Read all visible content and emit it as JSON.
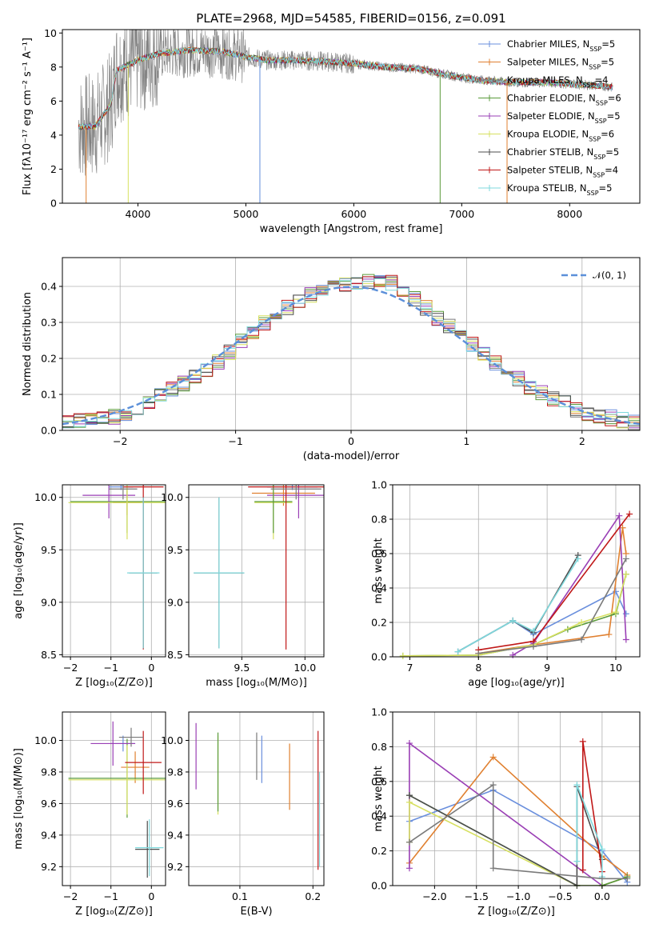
{
  "colors": {
    "Chabrier MILES": "#6a8fdd",
    "Salpeter MILES": "#e08030",
    "Kroupa MILES": "#7a7a7a",
    "Chabrier ELODIE": "#5a9a3a",
    "Salpeter ELODIE": "#9a3fb5",
    "Kroupa ELODIE": "#d6e060",
    "Chabrier STELIB": "#4d4d4d",
    "Salpeter STELIB": "#c01818",
    "Kroupa STELIB": "#7fd9dd",
    "normal_curve": "#5b8fd9",
    "grid": "#b0b0b0"
  },
  "chart_data": [
    {
      "type": "line",
      "title": "PLATE=2968, MJD=54585, FIBERID=0156, z=0.091",
      "xlabel": "wavelength [Angstrom, rest frame]",
      "ylabel": "Flux [fλ10⁻¹⁷ erg cm⁻² s⁻¹ A⁻¹]",
      "xlim": [
        3300,
        8650
      ],
      "ylim": [
        0,
        10.2
      ],
      "xticks": [
        "4000",
        "5000",
        "6000",
        "7000",
        "8000"
      ],
      "yticks": [
        "0",
        "2",
        "4",
        "6",
        "8",
        "10"
      ],
      "grid": false,
      "legend_position": "top-right",
      "legend": [
        "Chabrier MILES, N_SSP=5",
        "Salpeter MILES, N_SSP=5",
        "Kroupa MILES, N_SSP=4",
        "Chabrier ELODIE, N_SSP=6",
        "Salpeter ELODIE, N_SSP=5",
        "Kroupa ELODIE, N_SSP=6",
        "Chabrier STELIB, N_SSP=5",
        "Salpeter STELIB, N_SSP=4",
        "Kroupa STELIB, N_SSP=5"
      ],
      "data_envelope": {
        "x": [
          3450,
          3600,
          3750,
          3800,
          4000,
          4200,
          4500,
          4800,
          5000,
          5200,
          5500,
          5800,
          6000,
          6300,
          6600,
          6900,
          7200,
          7500,
          7800,
          8000,
          8300,
          8400
        ],
        "y": [
          4.5,
          4.5,
          5.8,
          7.8,
          8.4,
          8.8,
          9.0,
          8.9,
          8.6,
          8.4,
          8.4,
          8.3,
          8.2,
          8.0,
          7.9,
          7.5,
          7.2,
          7.1,
          7.1,
          7.0,
          6.9,
          6.8
        ]
      }
    },
    {
      "type": "line",
      "xlabel": "(data-model)/error",
      "ylabel": "Normed distribution",
      "xlim": [
        -2.5,
        2.5
      ],
      "ylim": [
        0,
        0.48
      ],
      "xticks": [
        "−2",
        "−1",
        "0",
        "1",
        "2"
      ],
      "yticks": [
        "0.0",
        "0.1",
        "0.2",
        "0.3",
        "0.4"
      ],
      "grid": true,
      "legend": [
        "𝒩(0, 1)"
      ],
      "curve": "normal pdf mean 0 sd 1",
      "histogram_bin_width": 0.1,
      "histogram_envelope": {
        "x": [
          -2.5,
          -2.0,
          -1.5,
          -1.2,
          -1.0,
          -0.8,
          -0.5,
          -0.2,
          0.0,
          0.3,
          0.5,
          0.8,
          1.0,
          1.2,
          1.5,
          2.0,
          2.5
        ],
        "y": [
          0.02,
          0.04,
          0.12,
          0.18,
          0.23,
          0.29,
          0.35,
          0.4,
          0.41,
          0.42,
          0.38,
          0.3,
          0.25,
          0.2,
          0.13,
          0.05,
          0.02
        ]
      }
    },
    {
      "type": "scatter",
      "xlabel": "Z [log₁₀(Z/Z⊙)]",
      "ylabel": "age  [log₁₀(age/yr)]",
      "xlim": [
        -2.2,
        0.35
      ],
      "ylim": [
        8.48,
        10.12
      ],
      "xticks": [
        "−2",
        "−1",
        "0"
      ],
      "yticks": [
        "8.5",
        "9.0",
        "9.5",
        "10.0"
      ],
      "grid": true,
      "errorbars": [
        {
          "series": "Chabrier MILES",
          "x": -0.75,
          "xerr": 0.3,
          "y": 10.1,
          "yerr": 0.03
        },
        {
          "series": "Salpeter MILES",
          "x": -0.6,
          "xerr": 0.35,
          "y": 9.95,
          "yerr": 0.12
        },
        {
          "series": "Chabrier ELODIE",
          "x": -0.6,
          "xerr": 1.4,
          "y": 9.96,
          "yerr": 0.3
        },
        {
          "series": "Salpeter ELODIE",
          "x": -1.05,
          "xerr": 0.65,
          "y": 10.02,
          "yerr": 0.22
        },
        {
          "series": "Kroupa ELODIE",
          "x": -0.6,
          "xerr": 1.45,
          "y": 9.95,
          "yerr": 0.35
        },
        {
          "series": "Chabrier STELIB",
          "x": -0.2,
          "xerr": 0.35,
          "y": 9.28,
          "yerr": 0.72
        },
        {
          "series": "Salpeter STELIB",
          "x": -0.2,
          "xerr": 0.5,
          "y": 10.1,
          "yerr": 1.55
        },
        {
          "series": "Kroupa STELIB",
          "x": -0.2,
          "xerr": 0.4,
          "y": 9.28,
          "yerr": 0.72
        },
        {
          "series": "Kroupa MILES",
          "x": -0.7,
          "xerr": 0.35,
          "y": 10.08,
          "yerr": 0.1
        }
      ]
    },
    {
      "type": "scatter",
      "xlabel": "mass [log₁₀(M/M⊙)]",
      "xlim": [
        9.08,
        10.15
      ],
      "ylim": [
        8.48,
        10.12
      ],
      "xticks": [
        "9.5",
        "10.0"
      ],
      "yticks": [
        "8.5",
        "9.0",
        "9.5",
        "10.0"
      ],
      "grid": true,
      "errorbars": [
        {
          "series": "Chabrier MILES",
          "x": 9.9,
          "xerr": 0.2,
          "y": 10.1,
          "yerr": 0.03
        },
        {
          "series": "Salpeter MILES",
          "x": 9.83,
          "xerr": 0.25,
          "y": 10.04,
          "yerr": 0.12
        },
        {
          "series": "Salpeter ELODIE",
          "x": 9.95,
          "xerr": 0.25,
          "y": 10.02,
          "yerr": 0.22
        },
        {
          "series": "Kroupa ELODIE",
          "x": 9.75,
          "xerr": 0.15,
          "y": 9.95,
          "yerr": 0.35
        },
        {
          "series": "Chabrier ELODIE",
          "x": 9.75,
          "xerr": 0.15,
          "y": 9.96,
          "yerr": 0.3
        },
        {
          "series": "Chabrier STELIB",
          "x": 9.32,
          "xerr": 0.2,
          "y": 9.28,
          "yerr": 0.72
        },
        {
          "series": "Salpeter STELIB",
          "x": 9.85,
          "xerr": 0.3,
          "y": 10.1,
          "yerr": 1.55
        },
        {
          "series": "Kroupa STELIB",
          "x": 9.32,
          "xerr": 0.2,
          "y": 9.28,
          "yerr": 0.72
        },
        {
          "series": "Kroupa MILES",
          "x": 9.93,
          "xerr": 0.2,
          "y": 10.08,
          "yerr": 0.1
        }
      ]
    },
    {
      "type": "line",
      "xlabel": "age  [log₁₀(age/yr)]",
      "ylabel": "mass weight",
      "xlim": [
        6.75,
        10.35
      ],
      "ylim": [
        0,
        1.0
      ],
      "xticks": [
        "7",
        "8",
        "9",
        "10"
      ],
      "yticks": [
        "0.0",
        "0.2",
        "0.4",
        "0.6",
        "0.8",
        "1.0"
      ],
      "grid": true,
      "series": [
        {
          "name": "Chabrier MILES",
          "x": [
            7.7,
            8.5,
            8.8,
            10.0,
            10.15
          ],
          "y": [
            0.03,
            0.21,
            0.13,
            0.38,
            0.25
          ]
        },
        {
          "name": "Salpeter MILES",
          "x": [
            8.0,
            8.8,
            9.9,
            10.1,
            10.15
          ],
          "y": [
            0.02,
            0.07,
            0.13,
            0.75,
            0.6
          ]
        },
        {
          "name": "Chabrier ELODIE",
          "x": [
            6.9,
            8.0,
            8.8,
            9.3,
            10.0,
            10.15
          ],
          "y": [
            0.005,
            0.01,
            0.07,
            0.16,
            0.25,
            0.48
          ]
        },
        {
          "name": "Salpeter ELODIE",
          "x": [
            8.5,
            8.8,
            10.05,
            10.15
          ],
          "y": [
            0.01,
            0.08,
            0.82,
            0.1
          ]
        },
        {
          "name": "Kroupa ELODIE",
          "x": [
            6.9,
            8.0,
            8.8,
            9.5,
            10.0,
            10.15
          ],
          "y": [
            0.005,
            0.01,
            0.07,
            0.2,
            0.26,
            0.48
          ]
        },
        {
          "name": "Chabrier STELIB",
          "x": [
            7.7,
            8.5,
            8.8,
            9.45
          ],
          "y": [
            0.03,
            0.21,
            0.14,
            0.59
          ]
        },
        {
          "name": "Salpeter STELIB",
          "x": [
            8.0,
            8.8,
            10.2
          ],
          "y": [
            0.04,
            0.09,
            0.83
          ]
        },
        {
          "name": "Kroupa STELIB",
          "x": [
            7.7,
            8.5,
            8.8,
            9.45
          ],
          "y": [
            0.03,
            0.21,
            0.15,
            0.57
          ]
        },
        {
          "name": "Kroupa MILES",
          "x": [
            8.0,
            8.8,
            9.5,
            10.15
          ],
          "y": [
            0.02,
            0.06,
            0.1,
            0.57
          ]
        }
      ]
    },
    {
      "type": "scatter",
      "xlabel": "Z [log₁₀(Z/Z⊙)]",
      "ylabel": "mass [log₁₀(M/M⊙)]",
      "xlim": [
        -2.2,
        0.35
      ],
      "ylim": [
        9.08,
        10.18
      ],
      "xticks": [
        "−2",
        "−1",
        "0"
      ],
      "yticks": [
        "9.2",
        "9.4",
        "9.6",
        "9.8",
        "10.0"
      ],
      "grid": true,
      "errorbars": [
        {
          "series": "Chabrier MILES",
          "x": -0.7,
          "xerr": 0.3,
          "y": 9.98,
          "yerr": 0.05
        },
        {
          "series": "Salpeter MILES",
          "x": -0.4,
          "xerr": 0.35,
          "y": 9.83,
          "yerr": 0.1
        },
        {
          "series": "Chabrier ELODIE",
          "x": -0.6,
          "xerr": 1.45,
          "y": 9.76,
          "yerr": 0.25
        },
        {
          "series": "Salpeter ELODIE",
          "x": -0.95,
          "xerr": 0.55,
          "y": 9.98,
          "yerr": 0.14
        },
        {
          "series": "Kroupa ELODIE",
          "x": -0.6,
          "xerr": 1.45,
          "y": 9.75,
          "yerr": 0.22
        },
        {
          "series": "Chabrier STELIB",
          "x": -0.1,
          "xerr": 0.3,
          "y": 9.31,
          "yerr": 0.18
        },
        {
          "series": "Salpeter STELIB",
          "x": -0.2,
          "xerr": 0.45,
          "y": 9.86,
          "yerr": 0.2
        },
        {
          "series": "Kroupa STELIB",
          "x": -0.05,
          "xerr": 0.35,
          "y": 9.32,
          "yerr": 0.18
        },
        {
          "series": "Kroupa MILES",
          "x": -0.5,
          "xerr": 0.3,
          "y": 10.02,
          "yerr": 0.06
        }
      ]
    },
    {
      "type": "scatter",
      "xlabel": "E(B-V)",
      "xlim": [
        0.03,
        0.215
      ],
      "ylim": [
        9.08,
        10.18
      ],
      "xticks": [
        "0.1",
        "0.2"
      ],
      "yticks": [
        "9.2",
        "9.4",
        "9.6",
        "9.8",
        "10.0"
      ],
      "grid": true,
      "errorbars": [
        {
          "series": "Salpeter ELODIE",
          "x": 0.04,
          "y": 9.9,
          "yerr": 0.21
        },
        {
          "series": "Kroupa ELODIE",
          "x": 0.07,
          "y": 9.78,
          "yerr": 0.25
        },
        {
          "series": "Chabrier ELODIE",
          "x": 0.07,
          "y": 9.8,
          "yerr": 0.25
        },
        {
          "series": "Kroupa MILES",
          "x": 0.123,
          "y": 9.9,
          "yerr": 0.15
        },
        {
          "series": "Chabrier MILES",
          "x": 0.13,
          "y": 9.88,
          "yerr": 0.15
        },
        {
          "series": "Salpeter MILES",
          "x": 0.168,
          "y": 9.77,
          "yerr": 0.21
        },
        {
          "series": "Salpeter STELIB",
          "x": 0.207,
          "y": 9.62,
          "yerr": 0.44
        },
        {
          "series": "Kroupa STELIB",
          "x": 0.209,
          "y": 9.5,
          "yerr": 0.3
        }
      ]
    },
    {
      "type": "line",
      "xlabel": "Z [log₁₀(Z/Z⊙)]",
      "ylabel": "mass weight",
      "xlim": [
        -2.5,
        0.45
      ],
      "ylim": [
        0,
        1.0
      ],
      "xticks": [
        "−2.0",
        "−1.5",
        "−1.0",
        "−0.5",
        "0.0"
      ],
      "yticks": [
        "0.0",
        "0.2",
        "0.4",
        "0.6",
        "0.8",
        "1.0"
      ],
      "grid": true,
      "series": [
        {
          "name": "Chabrier MILES",
          "x": [
            -2.3,
            -1.3,
            0.0,
            0.3
          ],
          "y": [
            0.37,
            0.55,
            0.2,
            0.02
          ]
        },
        {
          "name": "Salpeter MILES",
          "x": [
            -2.3,
            -1.3,
            0.0,
            0.3
          ],
          "y": [
            0.13,
            0.74,
            0.17,
            0.06
          ]
        },
        {
          "name": "Salpeter ELODIE",
          "x": [
            -2.3,
            -2.3,
            0.0,
            0.3
          ],
          "y": [
            0.1,
            0.82,
            0.0,
            0.05
          ]
        },
        {
          "name": "Kroupa ELODIE",
          "x": [
            -2.3,
            -2.3,
            -0.3,
            0.0,
            0.3
          ],
          "y": [
            0.25,
            0.48,
            0.0,
            0.0,
            0.05
          ]
        },
        {
          "name": "Chabrier ELODIE",
          "x": [
            -2.3,
            -0.3,
            0.0,
            0.3
          ],
          "y": [
            0.52,
            0.0,
            0.0,
            0.05
          ]
        },
        {
          "name": "Chabrier STELIB",
          "x": [
            -2.3,
            -0.3,
            -0.3,
            0.0
          ],
          "y": [
            0.52,
            0.0,
            0.57,
            0.15
          ]
        },
        {
          "name": "Salpeter STELIB",
          "x": [
            -0.23,
            -0.23,
            0.0
          ],
          "y": [
            0.09,
            0.83,
            0.08
          ]
        },
        {
          "name": "Kroupa STELIB",
          "x": [
            -0.3,
            -0.3,
            0.0,
            0.0
          ],
          "y": [
            0.14,
            0.58,
            0.21,
            0.05
          ]
        },
        {
          "name": "Kroupa MILES",
          "x": [
            -2.3,
            -1.3,
            -1.3,
            0.0,
            0.3
          ],
          "y": [
            0.25,
            0.58,
            0.1,
            0.04,
            0.04
          ]
        }
      ]
    }
  ]
}
